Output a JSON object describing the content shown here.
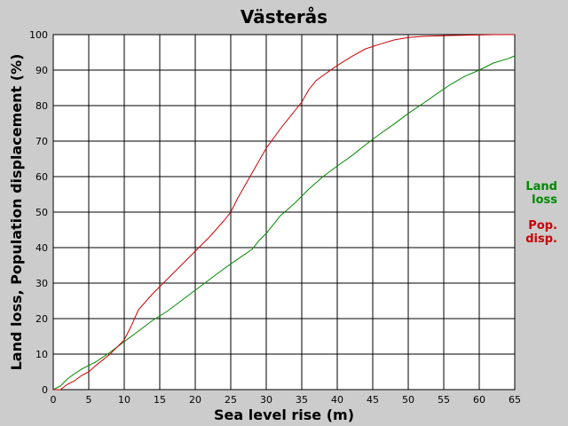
{
  "chart_data": {
    "type": "line",
    "title": "Västerås",
    "xlabel": "Sea level rise (m)",
    "ylabel": "Land loss, Population displacement (%)",
    "xlim": [
      0,
      65
    ],
    "ylim": [
      0,
      100
    ],
    "xticks": [
      0,
      5,
      10,
      15,
      20,
      25,
      30,
      35,
      40,
      45,
      50,
      55,
      60,
      65
    ],
    "yticks": [
      0,
      10,
      20,
      30,
      40,
      50,
      60,
      70,
      80,
      90,
      100
    ],
    "grid": true,
    "legend_position": "right",
    "series": [
      {
        "name_lines": [
          "Land",
          "loss"
        ],
        "color": "#008800",
        "x": [
          0,
          1,
          2,
          3,
          4,
          5,
          6,
          8,
          10,
          12,
          14,
          16,
          18,
          20,
          22,
          24,
          26,
          28,
          29,
          30,
          32,
          34,
          36,
          38,
          40,
          42,
          44,
          46,
          48,
          50,
          52,
          54,
          56,
          58,
          60,
          62,
          64,
          65
        ],
        "y": [
          0,
          1,
          3,
          4.5,
          5.8,
          6.8,
          7.8,
          10.5,
          13.5,
          16.5,
          19.5,
          22,
          25,
          28,
          31,
          34,
          36.8,
          39.5,
          42,
          44,
          49,
          52.5,
          56.5,
          60,
          63,
          65.8,
          69,
          72,
          74.8,
          77.8,
          80.5,
          83.3,
          86,
          88.3,
          90,
          92,
          93.2,
          94
        ]
      },
      {
        "name_lines": [
          "Pop.",
          "disp."
        ],
        "color": "#cc0000",
        "x": [
          0,
          1,
          2,
          3,
          4,
          5,
          6,
          8,
          10,
          11,
          12,
          14,
          16,
          18,
          20,
          22,
          24,
          25,
          26,
          28,
          30,
          32,
          34,
          35,
          36,
          37,
          38,
          40,
          42,
          44,
          46,
          48,
          50,
          52,
          55,
          60,
          62,
          65
        ],
        "y": [
          0,
          0,
          1.5,
          2.5,
          4,
          5,
          6.8,
          10,
          14,
          18,
          22.5,
          27,
          31,
          35,
          39,
          43,
          47.5,
          50,
          54,
          61,
          68,
          73.5,
          78.5,
          81,
          84.5,
          87,
          88.5,
          91.3,
          93.8,
          96,
          97.3,
          98.5,
          99.2,
          99.5,
          99.7,
          99.9,
          100,
          100
        ]
      }
    ]
  }
}
